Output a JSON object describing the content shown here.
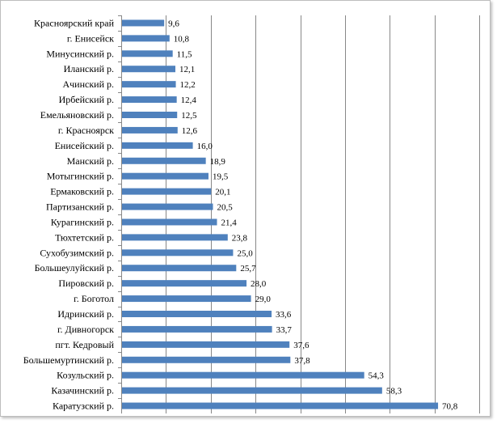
{
  "chart_data": {
    "type": "bar",
    "orientation": "horizontal",
    "title": "",
    "xlabel": "",
    "ylabel": "",
    "xlim": [
      0,
      80
    ],
    "grid": "vertical",
    "legend": "none",
    "bar_color": "#4f81bd",
    "categories": [
      "Красноярский край",
      "г. Енисейск",
      "Минусинский р.",
      "Иланский р.",
      "Ачинский р.",
      "Ирбейский р.",
      "Емельяновский р.",
      "г. Красноярск",
      "Енисейский р.",
      "Манский р.",
      "Мотыгинский р.",
      "Ермаковский р.",
      "Партизанский р.",
      "Курагинский р.",
      "Тюхтетский  р.",
      "Сухобузимский р.",
      "Большеулуйский р.",
      "Пировский р.",
      "г. Боготол",
      "Идринский р.",
      "г. Дивногорск",
      "пгт. Кедровый",
      "Большемуртинский р.",
      "Козульский р.",
      "Казачинский р.",
      "Каратузский р."
    ],
    "values": [
      9.6,
      10.8,
      11.5,
      12.1,
      12.2,
      12.4,
      12.5,
      12.6,
      16.0,
      18.9,
      19.5,
      20.1,
      20.5,
      21.4,
      23.8,
      25.0,
      25.7,
      28.0,
      29.0,
      33.6,
      33.7,
      37.6,
      37.8,
      54.3,
      58.3,
      70.8
    ],
    "value_labels": [
      "9,6",
      "10,8",
      "11,5",
      "12,1",
      "12,2",
      "12,4",
      "12,5",
      "12,6",
      "16,0",
      "18,9",
      "19,5",
      "20,1",
      "20,5",
      "21,4",
      "23,8",
      "25,0",
      "25,7",
      "28,0",
      "29,0",
      "33,6",
      "33,7",
      "37,6",
      "37,8",
      "54,3",
      "58,3",
      "70,8"
    ]
  }
}
